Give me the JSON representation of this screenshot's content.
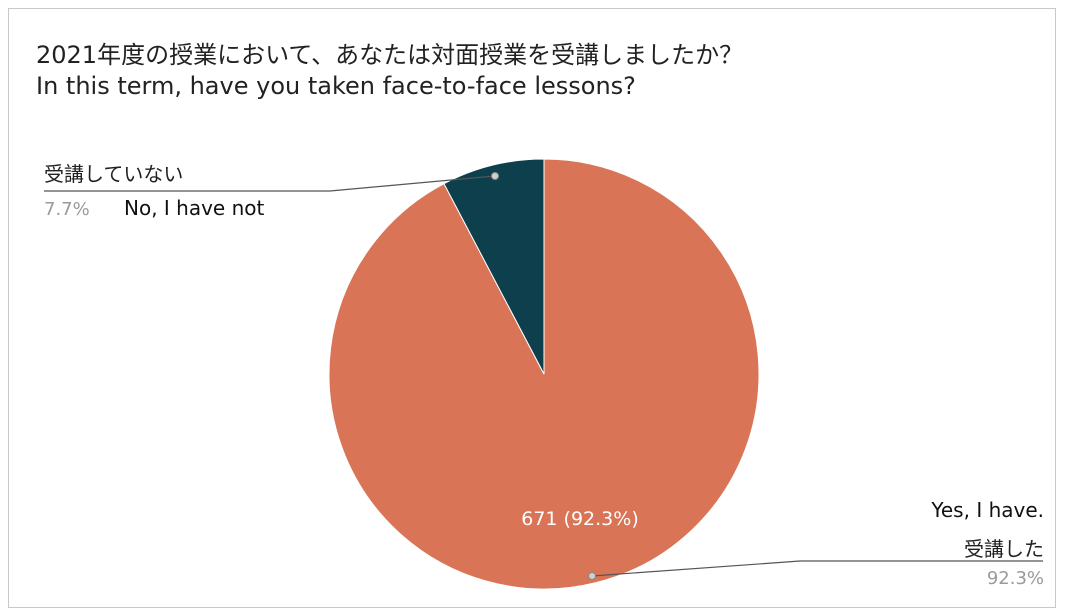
{
  "title_ja": "2021年度の授業において、あなたは対面授業を受講しましたか？",
  "title_en": "In this term, have you taken face-to-face lessons?",
  "chart_data": {
    "type": "pie",
    "title": "2021年度の授業において、あなたは対面授業を受講しましたか？ In this term, have you taken face-to-face lessons?",
    "slices": [
      {
        "label_ja": "受講した",
        "label_en": "Yes, I have.",
        "percent": 92.3,
        "count": 671,
        "percent_label": "92.3%",
        "inner_label": "671 (92.3%)",
        "color": "#d97456"
      },
      {
        "label_ja": "受講していない",
        "label_en": "No, I have not",
        "percent": 7.7,
        "percent_label": "7.7%",
        "color": "#0d3f4c"
      }
    ],
    "legend": "leader-line labels"
  }
}
